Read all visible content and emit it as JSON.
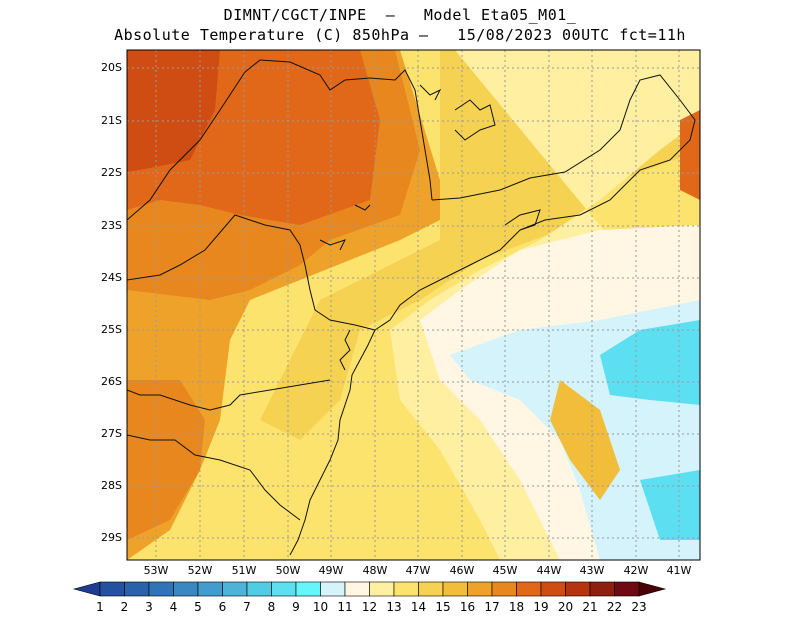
{
  "title": {
    "line1": "DIMNT/CGCT/INPE  –   Model Eta05_M01_",
    "line2": "Absolute Temperature (C) 850hPa –   15/08/2023 00UTC fct=11h"
  },
  "map": {
    "lat_labels": [
      "20S",
      "21S",
      "22S",
      "23S",
      "24S",
      "25S",
      "26S",
      "27S",
      "28S",
      "29S"
    ],
    "lon_labels": [
      "53W",
      "52W",
      "51W",
      "50W",
      "49W",
      "48W",
      "47W",
      "46W",
      "45W",
      "44W",
      "43W",
      "42W",
      "41W"
    ],
    "colorbar": {
      "labels": [
        "1",
        "2",
        "3",
        "4",
        "5",
        "6",
        "7",
        "8",
        "9",
        "10",
        "11",
        "12",
        "13",
        "14",
        "15",
        "16",
        "17",
        "18",
        "19",
        "20",
        "21",
        "22",
        "23"
      ],
      "colors": [
        "#1e3c91",
        "#23509f",
        "#2862ab",
        "#2f74b6",
        "#3988c2",
        "#439cce",
        "#4fb3d9",
        "#52cbe4",
        "#5cdff0",
        "#66f5fb",
        "#d4f3fb",
        "#fff7e3",
        "#ffefa0",
        "#fbe36e",
        "#f6d252",
        "#f2bd3a",
        "#eea22a",
        "#e9871f",
        "#e06818",
        "#cf4d12",
        "#b5330f",
        "#8e1e0d",
        "#6e0a12",
        "#4a0006"
      ]
    }
  }
}
